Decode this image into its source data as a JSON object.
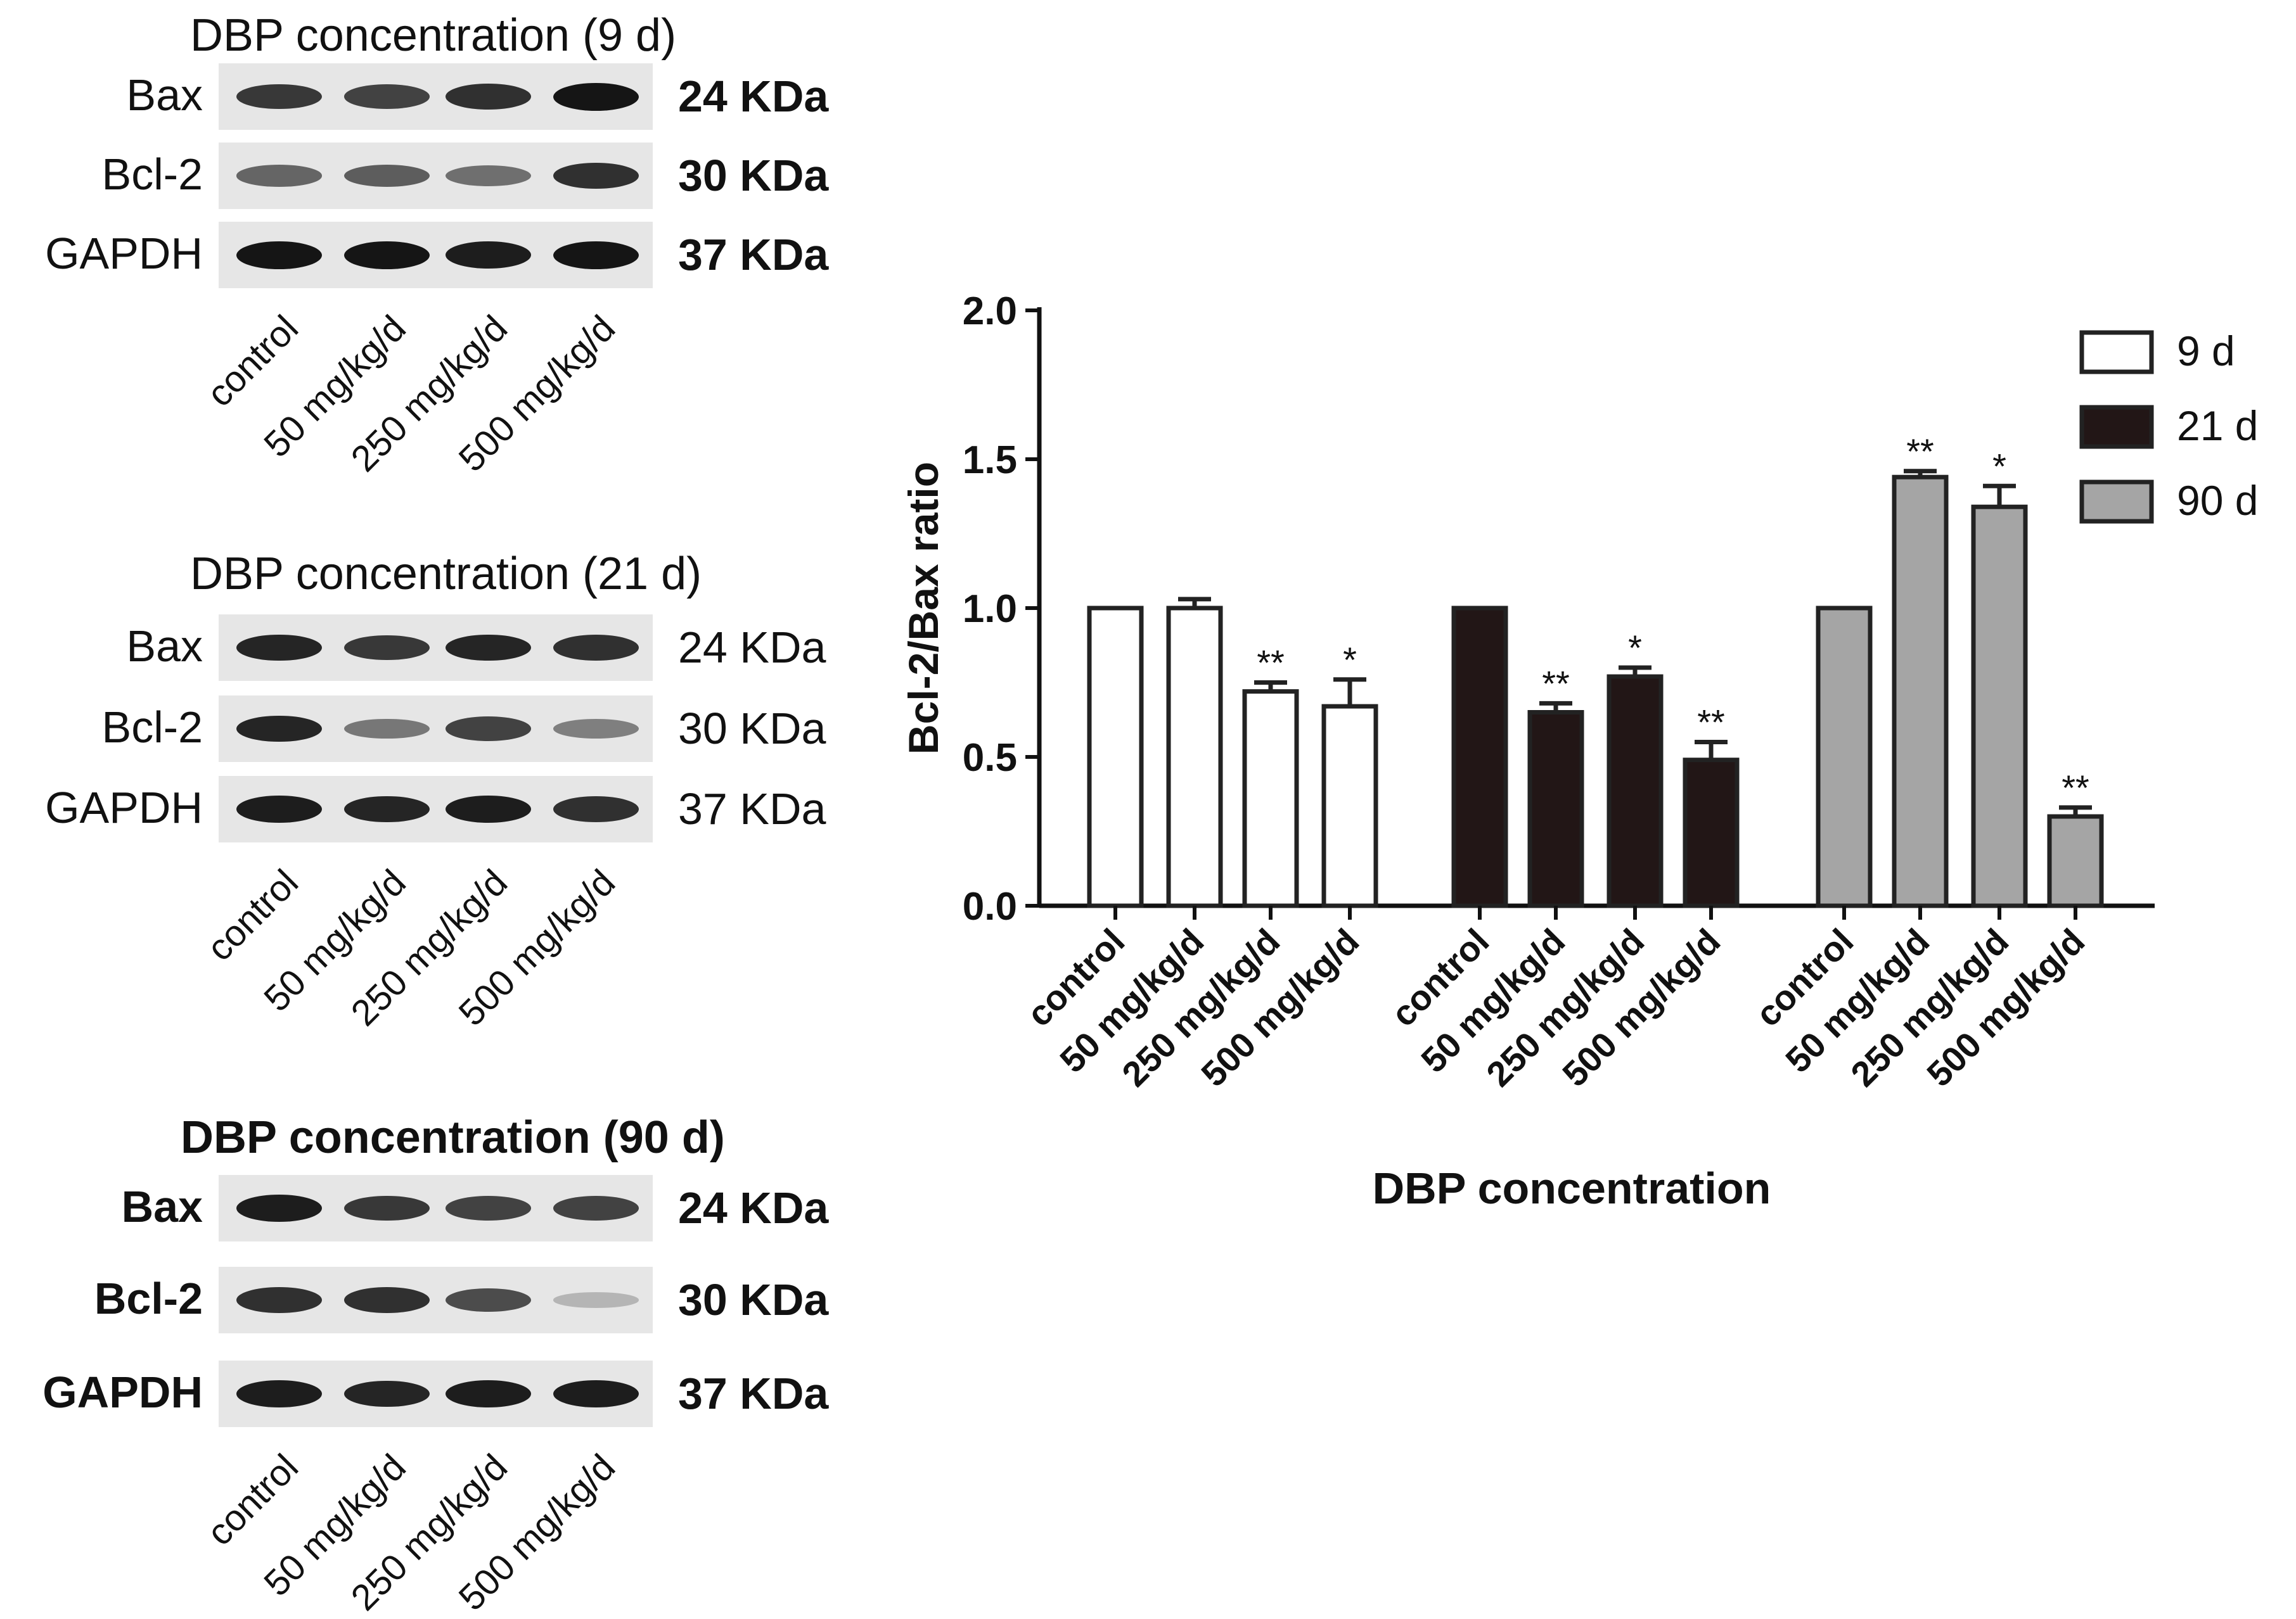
{
  "blot_panels": [
    {
      "title": "DBP concentration (9 d)",
      "bold_labels": false,
      "rows": [
        {
          "protein": "Bax",
          "kda": "24 KDa",
          "intensity": [
            0.8,
            0.75,
            0.85,
            1.0
          ]
        },
        {
          "protein": "Bcl-2",
          "kda": "30 KDa",
          "intensity": [
            0.55,
            0.6,
            0.5,
            0.85
          ]
        },
        {
          "protein": "GAPDH",
          "kda": "37 KDa",
          "intensity": [
            1.0,
            1.0,
            0.95,
            1.0
          ]
        }
      ],
      "lanes": [
        "control",
        "50 mg/kg/d",
        "250 mg/kg/d",
        "500 mg/kg/d"
      ]
    },
    {
      "title": "DBP concentration (21 d)",
      "bold_labels": false,
      "rows": [
        {
          "protein": "Bax",
          "kda": "24 KDa",
          "intensity": [
            0.9,
            0.8,
            0.9,
            0.85
          ]
        },
        {
          "protein": "Bcl-2",
          "kda": "30 KDa",
          "intensity": [
            0.9,
            0.45,
            0.75,
            0.4
          ]
        },
        {
          "protein": "GAPDH",
          "kda": "37 KDa",
          "intensity": [
            0.95,
            0.9,
            0.95,
            0.85
          ]
        }
      ],
      "lanes": [
        "control",
        "50 mg/kg/d",
        "250 mg/kg/d",
        "500 mg/kg/d"
      ]
    },
    {
      "title": "DBP concentration (90 d)",
      "bold_labels": true,
      "rows": [
        {
          "protein": "Bax",
          "kda": "24 KDa",
          "intensity": [
            0.95,
            0.8,
            0.75,
            0.75
          ]
        },
        {
          "protein": "Bcl-2",
          "kda": "30 KDa",
          "intensity": [
            0.85,
            0.85,
            0.7,
            0.1
          ]
        },
        {
          "protein": "GAPDH",
          "kda": "37 KDa",
          "intensity": [
            0.95,
            0.9,
            0.95,
            0.95
          ]
        }
      ],
      "lanes": [
        "control",
        "50 mg/kg/d",
        "250 mg/kg/d",
        "500 mg/kg/d"
      ]
    }
  ],
  "chart_data": {
    "type": "bar",
    "ylabel": "Bcl-2/Bax ratio",
    "xlabel": "DBP concentration",
    "ylim": [
      0,
      2.0
    ],
    "yticks": [
      "0.0",
      "0.5",
      "1.0",
      "1.5",
      "2.0"
    ],
    "groups": [
      {
        "name": "9 d",
        "color": "#ffffff",
        "categories": [
          "control",
          "50 mg/kg/d",
          "250 mg/kg/d",
          "500 mg/kg/d"
        ],
        "values": [
          1.0,
          1.0,
          0.72,
          0.67
        ],
        "errors": [
          0.0,
          0.03,
          0.03,
          0.09
        ],
        "significance": [
          "",
          "",
          "**",
          "*"
        ]
      },
      {
        "name": "21 d",
        "color": "#221616",
        "categories": [
          "control",
          "50 mg/kg/d",
          "250 mg/kg/d",
          "500 mg/kg/d"
        ],
        "values": [
          1.0,
          0.65,
          0.77,
          0.49
        ],
        "errors": [
          0.0,
          0.03,
          0.03,
          0.06
        ],
        "significance": [
          "",
          "**",
          "*",
          "**"
        ]
      },
      {
        "name": "90 d",
        "color": "#a5a5a5",
        "categories": [
          "control",
          "50 mg/kg/d",
          "250 mg/kg/d",
          "500 mg/kg/d"
        ],
        "values": [
          1.0,
          1.44,
          1.34,
          0.3
        ],
        "errors": [
          0.0,
          0.02,
          0.07,
          0.03
        ],
        "significance": [
          "",
          "**",
          "*",
          "**"
        ]
      }
    ],
    "legend": [
      "9 d",
      "21 d",
      "90 d"
    ]
  }
}
